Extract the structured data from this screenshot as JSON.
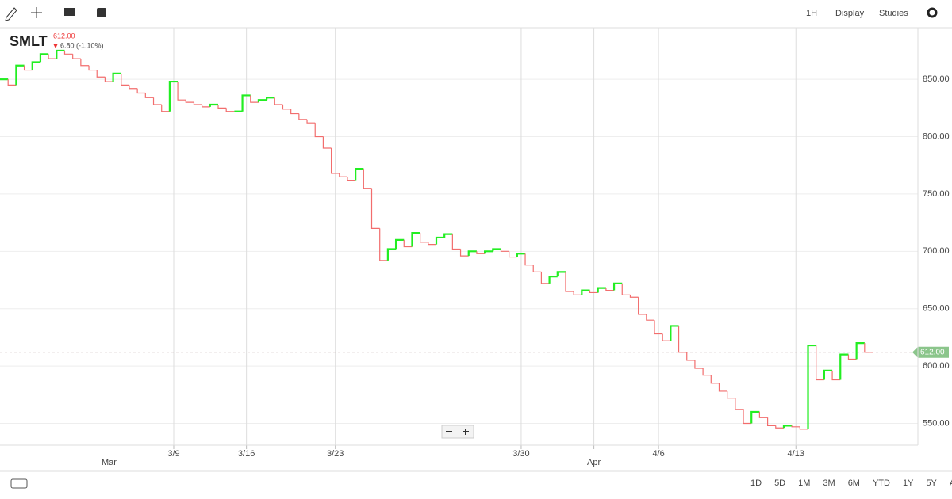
{
  "toolbar": {
    "interval": "1H",
    "display": "Display",
    "studies": "Studies"
  },
  "quote": {
    "symbol": "SMLT",
    "price": "612.00",
    "change": "6.80 (-1.10%)"
  },
  "chart_data": {
    "type": "step",
    "up_color": "#22ee22",
    "down_color": "#f26d6d",
    "categories": [
      null,
      null,
      null,
      null,
      null,
      null,
      null,
      null,
      null,
      null,
      null,
      null,
      null,
      "Mar",
      null,
      null,
      null,
      null,
      null,
      null,
      null,
      "3/9",
      null,
      null,
      null,
      null,
      null,
      null,
      null,
      null,
      "3/16",
      null,
      null,
      null,
      null,
      null,
      null,
      null,
      null,
      null,
      null,
      "3/23",
      null,
      null,
      null,
      null,
      null,
      null,
      null,
      null,
      null,
      null,
      null,
      null,
      null,
      null,
      null,
      null,
      null,
      null,
      null,
      null,
      null,
      null,
      "3/30",
      null,
      null,
      null,
      null,
      null,
      null,
      null,
      null,
      "Apr",
      null,
      null,
      null,
      null,
      null,
      null,
      null,
      "4/6",
      null,
      null,
      null,
      null,
      null,
      null,
      null,
      null,
      null,
      null,
      null,
      null,
      null,
      null,
      null,
      null,
      "4/13",
      null,
      null,
      null,
      null,
      null,
      null,
      null,
      null,
      null
    ],
    "values": [
      850,
      845,
      862,
      858,
      865,
      872,
      868,
      875,
      872,
      868,
      862,
      858,
      852,
      848,
      855,
      845,
      842,
      838,
      834,
      828,
      822,
      848,
      832,
      830,
      828,
      826,
      828,
      825,
      822,
      822,
      836,
      830,
      832,
      834,
      828,
      824,
      820,
      815,
      812,
      800,
      790,
      768,
      765,
      762,
      772,
      755,
      720,
      692,
      702,
      710,
      704,
      716,
      708,
      706,
      712,
      715,
      702,
      696,
      700,
      698,
      700,
      702,
      700,
      695,
      698,
      688,
      682,
      672,
      678,
      682,
      665,
      662,
      666,
      664,
      668,
      666,
      672,
      662,
      660,
      645,
      640,
      628,
      622,
      635,
      612,
      605,
      598,
      592,
      585,
      578,
      572,
      562,
      550,
      560,
      555,
      548,
      546,
      548,
      547,
      545,
      618,
      588,
      596,
      588,
      610,
      606,
      620,
      612
    ],
    "ylim": [
      531,
      895
    ],
    "yticks": [
      {
        "value": 550,
        "label": "550.00"
      },
      {
        "value": 600,
        "label": "600.00"
      },
      {
        "value": 650,
        "label": "650.00"
      },
      {
        "value": 700,
        "label": "700.00"
      },
      {
        "value": 750,
        "label": "750.00"
      },
      {
        "value": 800,
        "label": "800.00"
      },
      {
        "value": 850,
        "label": "850.00"
      }
    ],
    "last_price": {
      "value": 612,
      "label": "612.00"
    },
    "grid": true
  },
  "ranges": [
    "1D",
    "5D",
    "1M",
    "3M",
    "6M",
    "YTD",
    "1Y",
    "5Y",
    "All"
  ]
}
